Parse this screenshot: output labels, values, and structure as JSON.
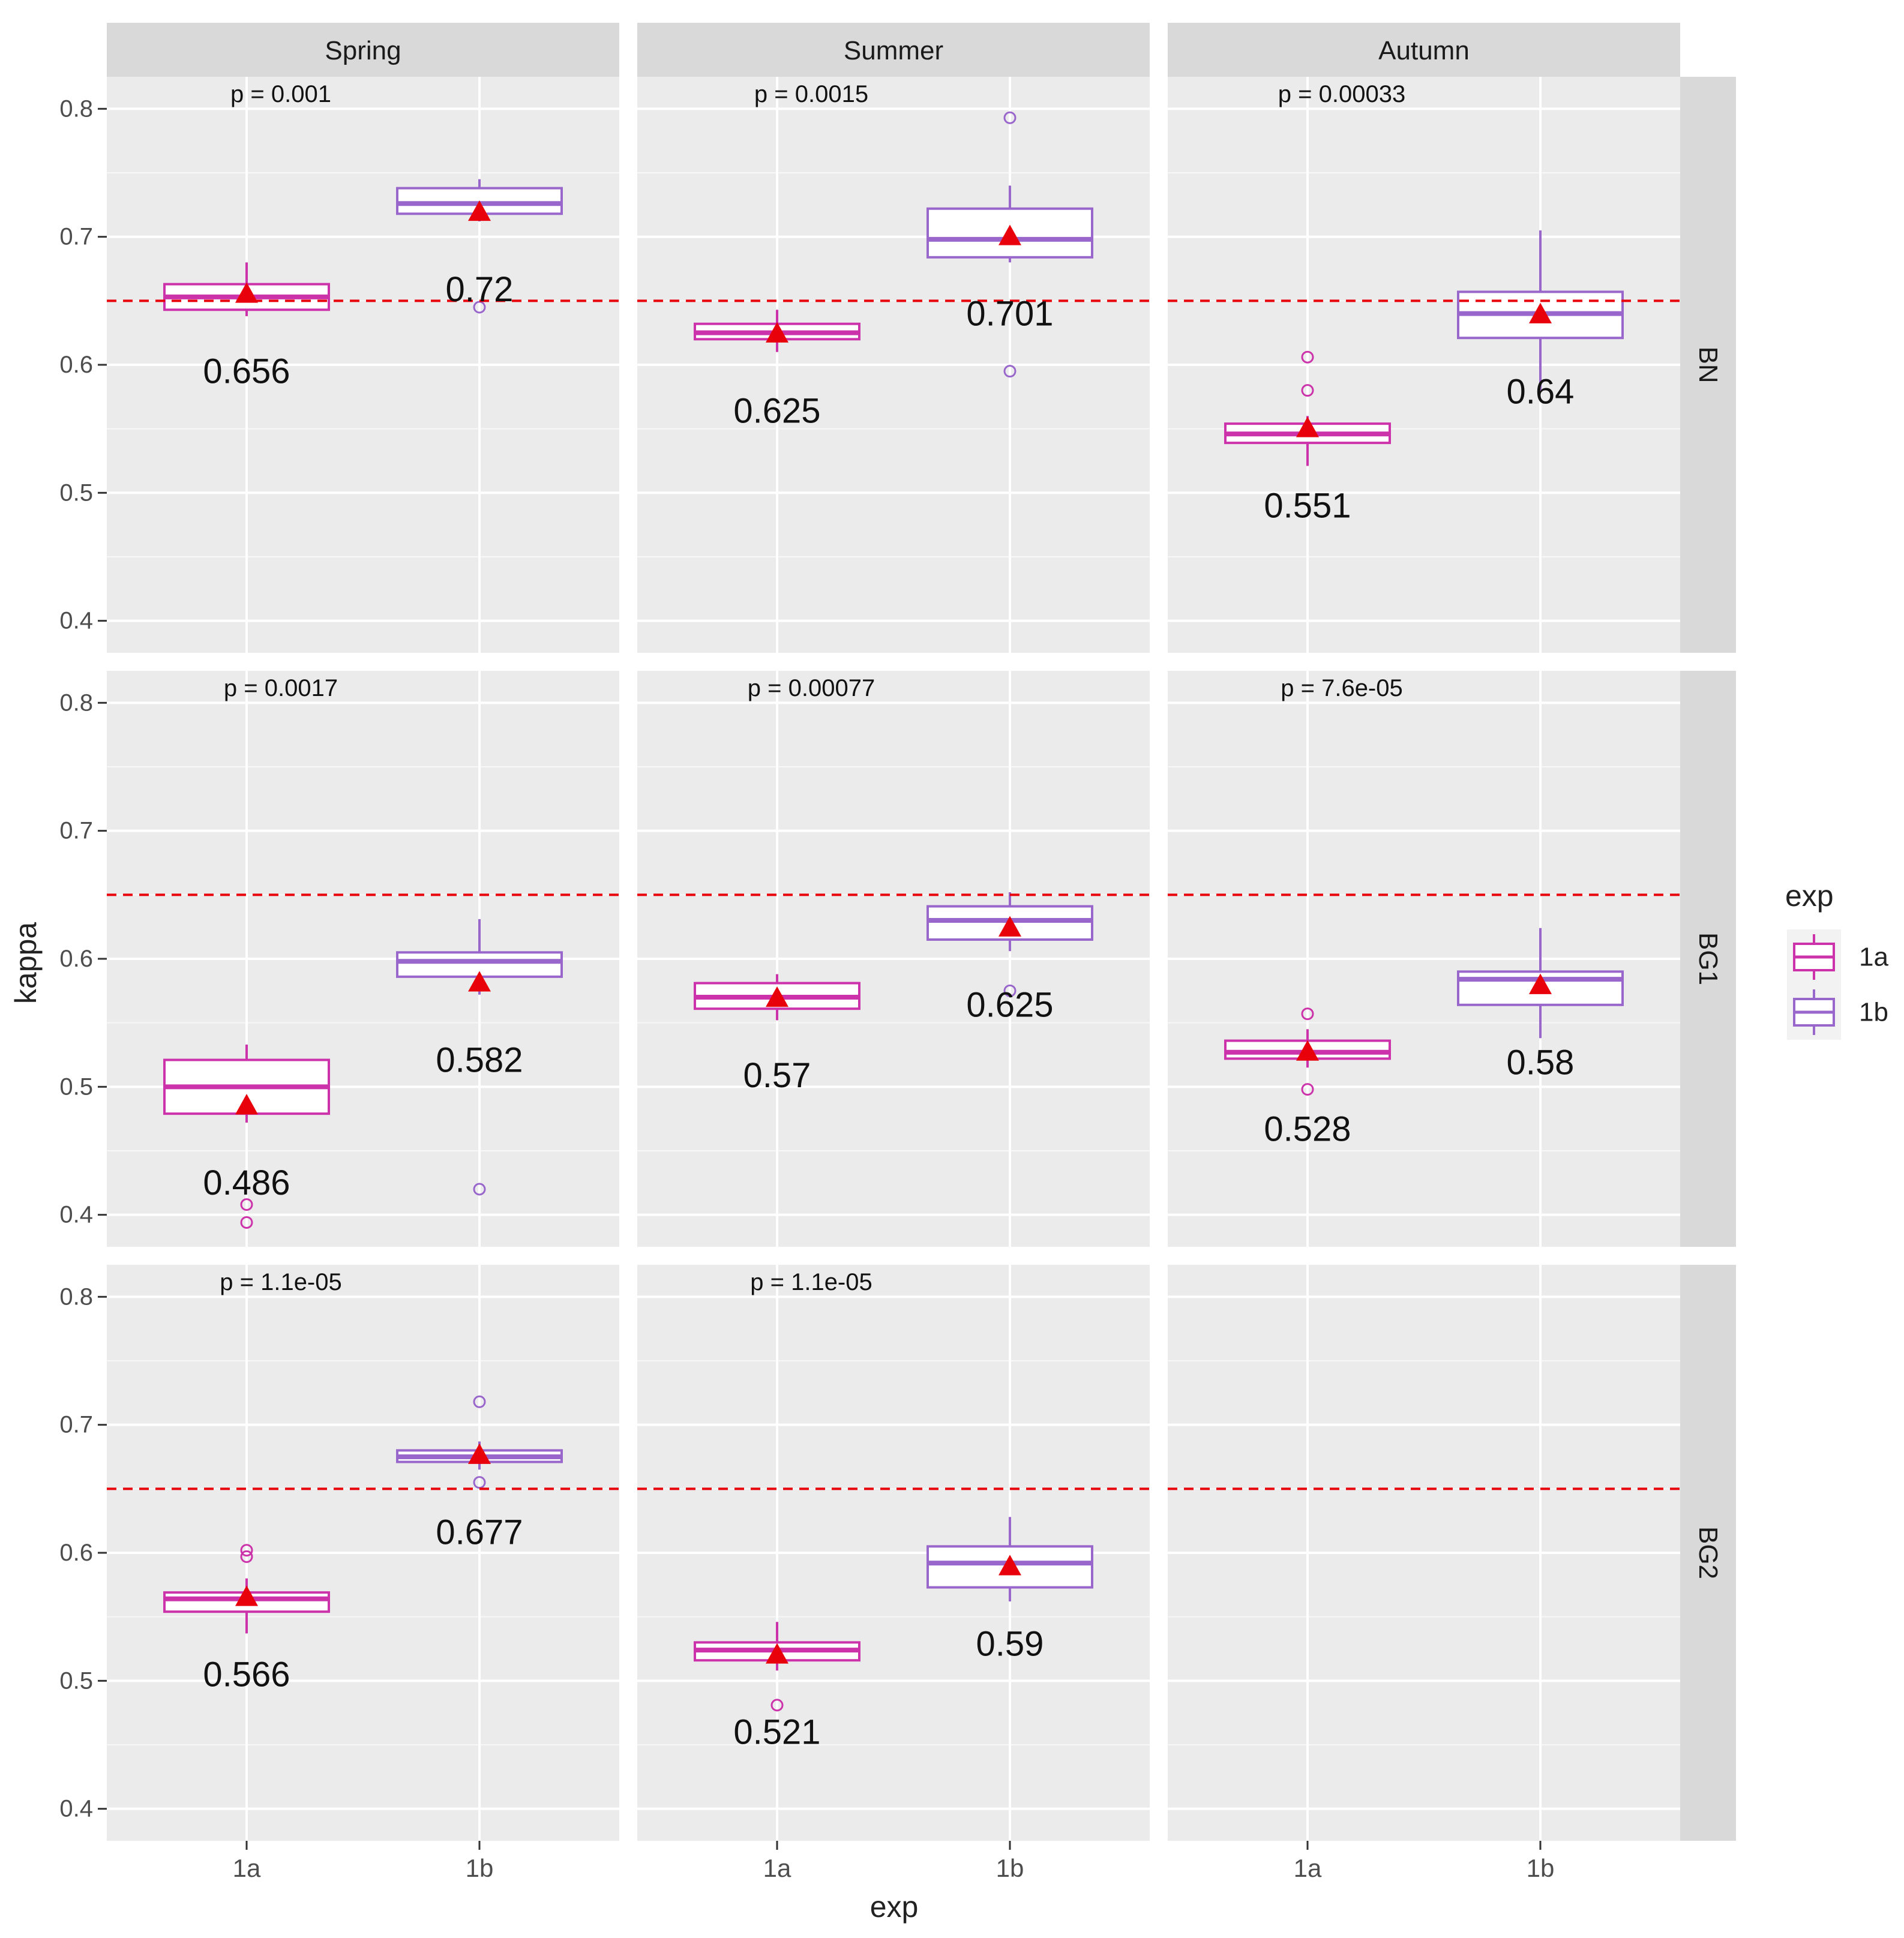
{
  "chart_data": {
    "type": "boxplot",
    "x_label": "exp",
    "y_label": "kappa",
    "y_range": [
      0.375,
      0.825
    ],
    "y_ticks": [
      0.4,
      0.5,
      0.6,
      0.7,
      0.8
    ],
    "y_tick_labels": [
      "0.4",
      "0.5",
      "0.6",
      "0.7",
      "0.8"
    ],
    "categories": [
      "1a",
      "1b"
    ],
    "reference_line": 0.65,
    "columns": [
      "Spring",
      "Summer",
      "Autumn"
    ],
    "rows": [
      "BN",
      "BG1",
      "BG2"
    ],
    "legend": {
      "title": "exp",
      "items": [
        {
          "label": "1a",
          "color": "#cc33aa"
        },
        {
          "label": "1b",
          "color": "#9966cc"
        }
      ]
    },
    "colors": {
      "1a": "#cc33aa",
      "1b": "#9966cc",
      "mean_marker": "#e8000b",
      "reference_line": "#e8000b",
      "panel_bg": "#ebebeb",
      "strip_bg": "#d9d9d9"
    },
    "panels": [
      {
        "row": "BN",
        "col": "Spring",
        "p_label": "p = 0.001",
        "boxes": [
          {
            "exp": "1a",
            "q1": 0.643,
            "median": 0.653,
            "q3": 0.663,
            "wlo": 0.638,
            "whi": 0.68,
            "mean": 0.656,
            "mean_label": "0.656",
            "outliers": []
          },
          {
            "exp": "1b",
            "q1": 0.718,
            "median": 0.726,
            "q3": 0.738,
            "wlo": 0.712,
            "whi": 0.745,
            "mean": 0.72,
            "mean_label": "0.72",
            "outliers": [
              0.645
            ]
          }
        ]
      },
      {
        "row": "BN",
        "col": "Summer",
        "p_label": "p = 0.0015",
        "boxes": [
          {
            "exp": "1a",
            "q1": 0.62,
            "median": 0.625,
            "q3": 0.632,
            "wlo": 0.61,
            "whi": 0.643,
            "mean": 0.625,
            "mean_label": "0.625",
            "outliers": []
          },
          {
            "exp": "1b",
            "q1": 0.684,
            "median": 0.698,
            "q3": 0.722,
            "wlo": 0.68,
            "whi": 0.74,
            "mean": 0.701,
            "mean_label": "0.701",
            "outliers": [
              0.793,
              0.595
            ]
          }
        ]
      },
      {
        "row": "BN",
        "col": "Autumn",
        "p_label": "p = 0.00033",
        "boxes": [
          {
            "exp": "1a",
            "q1": 0.539,
            "median": 0.546,
            "q3": 0.554,
            "wlo": 0.521,
            "whi": 0.56,
            "mean": 0.551,
            "mean_label": "0.551",
            "outliers": [
              0.606,
              0.58
            ]
          },
          {
            "exp": "1b",
            "q1": 0.621,
            "median": 0.64,
            "q3": 0.657,
            "wlo": 0.58,
            "whi": 0.705,
            "mean": 0.64,
            "mean_label": "0.64",
            "outliers": []
          }
        ]
      },
      {
        "row": "BG1",
        "col": "Spring",
        "p_label": "p = 0.0017",
        "boxes": [
          {
            "exp": "1a",
            "q1": 0.479,
            "median": 0.5,
            "q3": 0.521,
            "wlo": 0.472,
            "whi": 0.533,
            "mean": 0.486,
            "mean_label": "0.486",
            "outliers": [
              0.408,
              0.394
            ]
          },
          {
            "exp": "1b",
            "q1": 0.586,
            "median": 0.598,
            "q3": 0.605,
            "wlo": 0.572,
            "whi": 0.631,
            "mean": 0.582,
            "mean_label": "0.582",
            "outliers": [
              0.42
            ]
          }
        ]
      },
      {
        "row": "BG1",
        "col": "Summer",
        "p_label": "p = 0.00077",
        "boxes": [
          {
            "exp": "1a",
            "q1": 0.561,
            "median": 0.57,
            "q3": 0.581,
            "wlo": 0.552,
            "whi": 0.588,
            "mean": 0.57,
            "mean_label": "0.57",
            "outliers": []
          },
          {
            "exp": "1b",
            "q1": 0.615,
            "median": 0.63,
            "q3": 0.641,
            "wlo": 0.606,
            "whi": 0.652,
            "mean": 0.625,
            "mean_label": "0.625",
            "outliers": [
              0.575
            ]
          }
        ]
      },
      {
        "row": "BG1",
        "col": "Autumn",
        "p_label": "p = 7.6e-05",
        "boxes": [
          {
            "exp": "1a",
            "q1": 0.522,
            "median": 0.527,
            "q3": 0.536,
            "wlo": 0.515,
            "whi": 0.545,
            "mean": 0.528,
            "mean_label": "0.528",
            "outliers": [
              0.557,
              0.498
            ]
          },
          {
            "exp": "1b",
            "q1": 0.564,
            "median": 0.584,
            "q3": 0.59,
            "wlo": 0.538,
            "whi": 0.624,
            "mean": 0.58,
            "mean_label": "0.58",
            "outliers": []
          }
        ]
      },
      {
        "row": "BG2",
        "col": "Spring",
        "p_label": "p = 1.1e-05",
        "boxes": [
          {
            "exp": "1a",
            "q1": 0.554,
            "median": 0.564,
            "q3": 0.569,
            "wlo": 0.537,
            "whi": 0.58,
            "mean": 0.566,
            "mean_label": "0.566",
            "outliers": [
              0.602,
              0.597
            ]
          },
          {
            "exp": "1b",
            "q1": 0.671,
            "median": 0.675,
            "q3": 0.68,
            "wlo": 0.665,
            "whi": 0.687,
            "mean": 0.677,
            "mean_label": "0.677",
            "outliers": [
              0.718,
              0.655
            ]
          }
        ]
      },
      {
        "row": "BG2",
        "col": "Summer",
        "p_label": "p = 1.1e-05",
        "boxes": [
          {
            "exp": "1a",
            "q1": 0.516,
            "median": 0.524,
            "q3": 0.53,
            "wlo": 0.508,
            "whi": 0.546,
            "mean": 0.521,
            "mean_label": "0.521",
            "outliers": [
              0.481
            ]
          },
          {
            "exp": "1b",
            "q1": 0.573,
            "median": 0.592,
            "q3": 0.605,
            "wlo": 0.562,
            "whi": 0.628,
            "mean": 0.59,
            "mean_label": "0.59",
            "outliers": []
          }
        ]
      },
      {
        "row": "BG2",
        "col": "Autumn",
        "p_label": "",
        "boxes": []
      }
    ]
  }
}
